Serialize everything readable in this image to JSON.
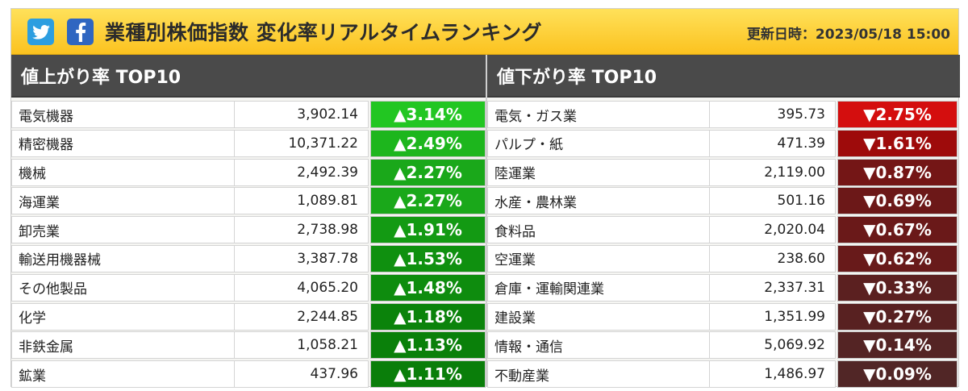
{
  "header": {
    "title": "業種別株価指数 変化率リアルタイムランキング",
    "updated": "更新日時：2023/05/18 15:00",
    "social": [
      {
        "icon": "twitter-icon",
        "color": "#2d9ee0"
      },
      {
        "icon": "facebook-icon",
        "color": "#2f66c1"
      }
    ]
  },
  "gainers": {
    "title": "値上がり率 TOP10",
    "rows": [
      {
        "name": "電気機器",
        "value": "3,902.14",
        "change": "▲3.14%",
        "color": "#22c622"
      },
      {
        "name": "精密機器",
        "value": "10,371.22",
        "change": "▲2.49%",
        "color": "#1db61d"
      },
      {
        "name": "機械",
        "value": "2,492.39",
        "change": "▲2.27%",
        "color": "#1aa81a"
      },
      {
        "name": "海運業",
        "value": "1,089.81",
        "change": "▲2.27%",
        "color": "#1aa81a"
      },
      {
        "name": "卸売業",
        "value": "2,738.98",
        "change": "▲1.91%",
        "color": "#139a13"
      },
      {
        "name": "輸送用機器械",
        "value": "3,387.78",
        "change": "▲1.53%",
        "color": "#0f900f"
      },
      {
        "name": "その他製品",
        "value": "4,065.20",
        "change": "▲1.48%",
        "color": "#0e8c0e"
      },
      {
        "name": "化学",
        "value": "2,244.85",
        "change": "▲1.18%",
        "color": "#0b830b"
      },
      {
        "name": "非鉄金属",
        "value": "1,058.21",
        "change": "▲1.13%",
        "color": "#0a800a"
      },
      {
        "name": "鉱業",
        "value": "437.96",
        "change": "▲1.11%",
        "color": "#0a7e0a"
      }
    ]
  },
  "losers": {
    "title": "値下がり率 TOP10",
    "rows": [
      {
        "name": "電気・ガス業",
        "value": "395.73",
        "change": "▼2.75%",
        "color": "#d40e0e"
      },
      {
        "name": "パルプ・紙",
        "value": "471.39",
        "change": "▼1.61%",
        "color": "#9e0b0b"
      },
      {
        "name": "陸運業",
        "value": "2,119.00",
        "change": "▼0.87%",
        "color": "#741616"
      },
      {
        "name": "水産・農林業",
        "value": "501.16",
        "change": "▼0.69%",
        "color": "#6c1818"
      },
      {
        "name": "食料品",
        "value": "2,020.04",
        "change": "▼0.67%",
        "color": "#6a1919"
      },
      {
        "name": "空運業",
        "value": "238.60",
        "change": "▼0.62%",
        "color": "#681a1a"
      },
      {
        "name": "倉庫・運輸関連業",
        "value": "2,337.31",
        "change": "▼0.33%",
        "color": "#5b2020"
      },
      {
        "name": "建設業",
        "value": "1,351.99",
        "change": "▼0.27%",
        "color": "#582121"
      },
      {
        "name": "情報・通信",
        "value": "5,069.92",
        "change": "▼0.14%",
        "color": "#542424"
      },
      {
        "name": "不動産業",
        "value": "1,486.97",
        "change": "▼0.09%",
        "color": "#512626"
      }
    ]
  }
}
